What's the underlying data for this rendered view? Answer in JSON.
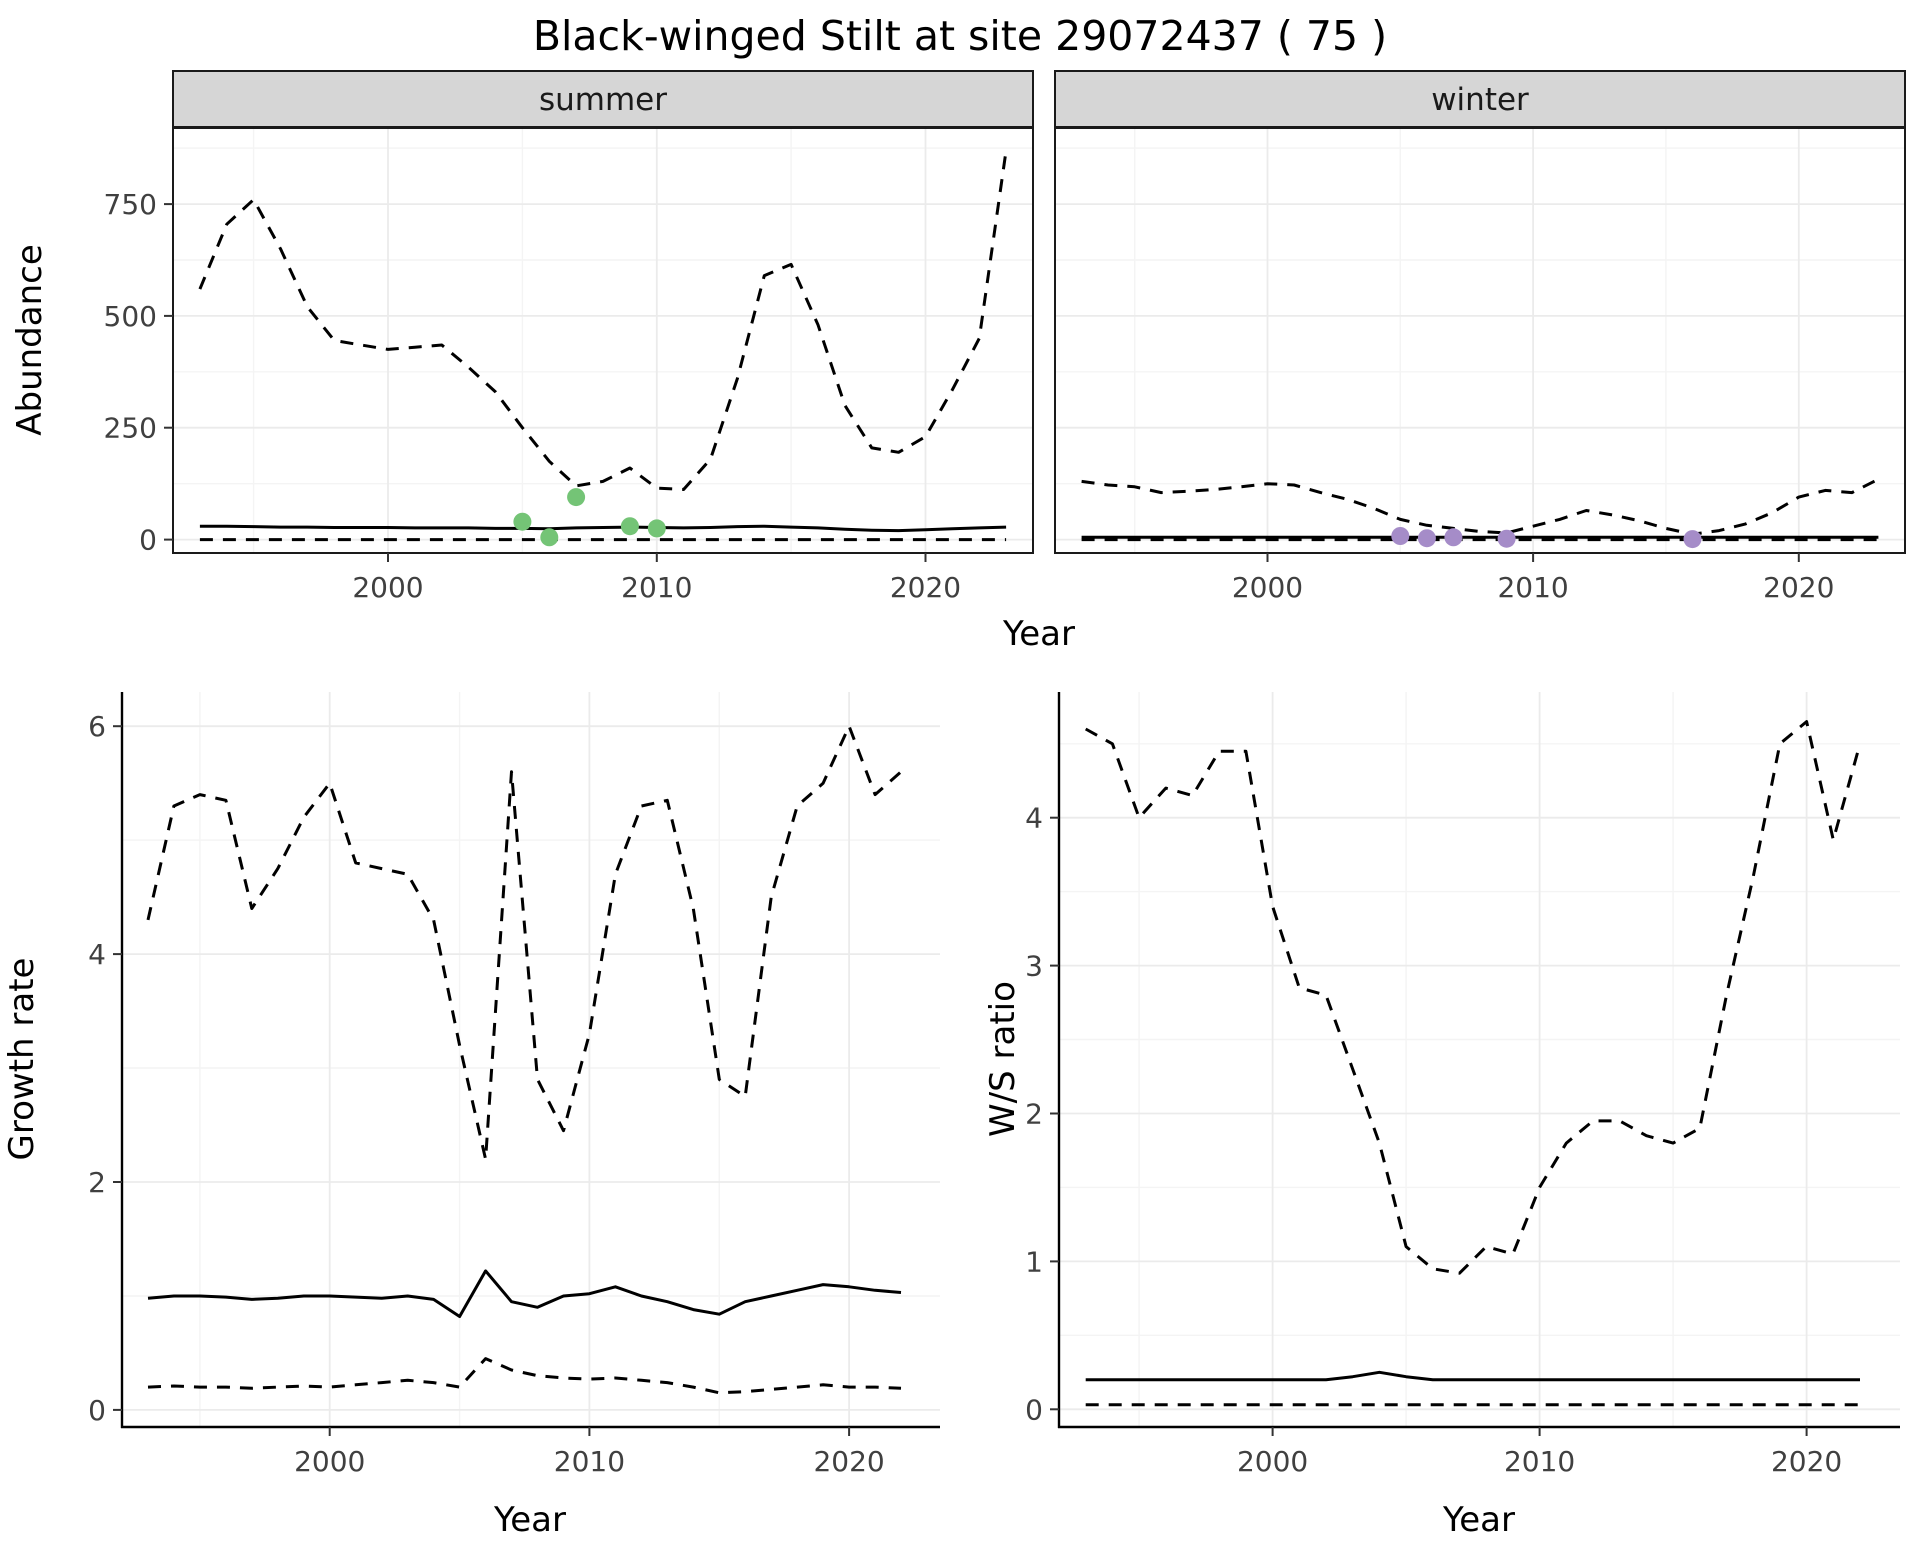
{
  "title": "Black-winged Stilt at site 29072437 ( 75 )",
  "axis_labels": {
    "abundance": "Abundance",
    "year": "Year",
    "growth_rate": "Growth rate",
    "ws_ratio": "W/S ratio"
  },
  "facet_labels": {
    "summer": "summer",
    "winter": "winter"
  },
  "colors": {
    "summer_points": "#74c476",
    "winter_points": "#a58cc8",
    "line": "#000000",
    "strip_bg": "#d6d6d6",
    "grid_major": "#ebebeb",
    "grid_minor": "#f4f4f4"
  },
  "chart_data": [
    {
      "id": "abundance-summer",
      "type": "line",
      "strip": "summer",
      "x_label": "Year",
      "y_label": "Abundance",
      "xlim": [
        1992,
        2024
      ],
      "ylim": [
        -30,
        920
      ],
      "xticks": [
        2000,
        2010,
        2020
      ],
      "yticks": [
        0,
        250,
        500,
        750
      ],
      "border": "full",
      "show_y_tick_labels": true,
      "x": [
        1993,
        1994,
        1995,
        1996,
        1997,
        1998,
        1999,
        2000,
        2001,
        2002,
        2003,
        2004,
        2005,
        2006,
        2007,
        2008,
        2009,
        2010,
        2011,
        2012,
        2013,
        2014,
        2015,
        2016,
        2017,
        2018,
        2019,
        2020,
        2021,
        2022,
        2023
      ],
      "series": [
        {
          "name": "upper_ci",
          "style": "dashed",
          "y": [
            560,
            705,
            760,
            650,
            520,
            445,
            435,
            425,
            430,
            435,
            385,
            330,
            250,
            175,
            120,
            130,
            160,
            115,
            112,
            180,
            360,
            590,
            615,
            480,
            300,
            205,
            195,
            230,
            335,
            450,
            870
          ]
        },
        {
          "name": "median",
          "style": "solid",
          "y": [
            30,
            30,
            29,
            28,
            28,
            27,
            27,
            27,
            26,
            26,
            26,
            25,
            25,
            24,
            26,
            27,
            28,
            27,
            26,
            27,
            29,
            30,
            28,
            26,
            23,
            21,
            20,
            22,
            24,
            26,
            28
          ]
        },
        {
          "name": "lower_ci",
          "style": "dashed",
          "y": [
            0,
            0,
            0,
            0,
            0,
            0,
            0,
            0,
            0,
            0,
            0,
            0,
            0,
            0,
            0,
            0,
            0,
            0,
            0,
            0,
            0,
            0,
            0,
            0,
            0,
            0,
            0,
            0,
            0,
            0,
            0
          ]
        }
      ],
      "observed_points": {
        "color": "#74c476",
        "x": [
          2005,
          2006,
          2007,
          2009,
          2010
        ],
        "y": [
          40,
          5,
          95,
          30,
          25
        ]
      }
    },
    {
      "id": "abundance-winter",
      "type": "line",
      "strip": "winter",
      "x_label": "Year",
      "y_label": "Abundance",
      "xlim": [
        1992,
        2024
      ],
      "ylim": [
        -30,
        920
      ],
      "xticks": [
        2000,
        2010,
        2020
      ],
      "yticks": [
        0,
        250,
        500,
        750
      ],
      "border": "full",
      "show_y_tick_labels": false,
      "x": [
        1993,
        1994,
        1995,
        1996,
        1997,
        1998,
        1999,
        2000,
        2001,
        2002,
        2003,
        2004,
        2005,
        2006,
        2007,
        2008,
        2009,
        2010,
        2011,
        2012,
        2013,
        2014,
        2015,
        2016,
        2017,
        2018,
        2019,
        2020,
        2021,
        2022,
        2023
      ],
      "series": [
        {
          "name": "upper_ci",
          "style": "dashed",
          "y": [
            130,
            122,
            118,
            105,
            108,
            112,
            118,
            125,
            122,
            105,
            90,
            70,
            45,
            32,
            25,
            18,
            15,
            30,
            45,
            65,
            55,
            42,
            25,
            12,
            20,
            35,
            60,
            95,
            110,
            105,
            135
          ]
        },
        {
          "name": "median",
          "style": "solid",
          "y": [
            5,
            5,
            5,
            5,
            5,
            5,
            5,
            5,
            5,
            5,
            5,
            5,
            5,
            5,
            5,
            5,
            5,
            5,
            5,
            5,
            5,
            5,
            5,
            5,
            5,
            5,
            5,
            5,
            5,
            5,
            5
          ]
        },
        {
          "name": "lower_ci",
          "style": "dashed",
          "y": [
            0,
            0,
            0,
            0,
            0,
            0,
            0,
            0,
            0,
            0,
            0,
            0,
            0,
            0,
            0,
            0,
            0,
            0,
            0,
            0,
            0,
            0,
            0,
            0,
            0,
            0,
            0,
            0,
            0,
            0,
            0
          ]
        }
      ],
      "observed_points": {
        "color": "#a58cc8",
        "x": [
          2005,
          2006,
          2007,
          2009,
          2016
        ],
        "y": [
          8,
          3,
          5,
          2,
          1
        ]
      }
    },
    {
      "id": "growth-rate",
      "type": "line",
      "strip": "",
      "x_label": "Year",
      "y_label": "Growth rate",
      "xlim": [
        1992,
        2023.5
      ],
      "ylim": [
        -0.15,
        6.3
      ],
      "xticks": [
        2000,
        2010,
        2020
      ],
      "yticks": [
        0,
        2,
        4,
        6
      ],
      "border": "axes",
      "show_y_tick_labels": true,
      "x": [
        1993,
        1994,
        1995,
        1996,
        1997,
        1998,
        1999,
        2000,
        2001,
        2002,
        2003,
        2004,
        2005,
        2006,
        2007,
        2008,
        2009,
        2010,
        2011,
        2012,
        2013,
        2014,
        2015,
        2016,
        2017,
        2018,
        2019,
        2020,
        2021,
        2022
      ],
      "series": [
        {
          "name": "upper_ci",
          "style": "dashed",
          "y": [
            4.3,
            5.3,
            5.4,
            5.35,
            4.4,
            4.75,
            5.2,
            5.5,
            4.8,
            4.75,
            4.7,
            4.3,
            3.2,
            2.2,
            5.6,
            2.9,
            2.45,
            3.3,
            4.7,
            5.3,
            5.35,
            4.4,
            2.9,
            2.75,
            4.5,
            5.3,
            5.5,
            6.0,
            5.4,
            5.6
          ]
        },
        {
          "name": "median",
          "style": "solid",
          "y": [
            0.98,
            1.0,
            1.0,
            0.99,
            0.97,
            0.98,
            1.0,
            1.0,
            0.99,
            0.98,
            1.0,
            0.97,
            0.82,
            1.22,
            0.95,
            0.9,
            1.0,
            1.02,
            1.08,
            1.0,
            0.95,
            0.88,
            0.84,
            0.95,
            1.0,
            1.05,
            1.1,
            1.08,
            1.05,
            1.03
          ]
        },
        {
          "name": "lower_ci",
          "style": "dashed",
          "y": [
            0.2,
            0.21,
            0.2,
            0.2,
            0.19,
            0.2,
            0.21,
            0.2,
            0.22,
            0.24,
            0.26,
            0.24,
            0.2,
            0.45,
            0.35,
            0.3,
            0.28,
            0.27,
            0.28,
            0.26,
            0.24,
            0.2,
            0.15,
            0.16,
            0.18,
            0.2,
            0.22,
            0.2,
            0.2,
            0.19
          ]
        }
      ]
    },
    {
      "id": "ws-ratio",
      "type": "line",
      "strip": "",
      "x_label": "Year",
      "y_label": "W/S ratio",
      "xlim": [
        1992,
        2023.5
      ],
      "ylim": [
        -0.12,
        4.85
      ],
      "xticks": [
        2000,
        2010,
        2020
      ],
      "yticks": [
        0,
        1,
        2,
        3,
        4
      ],
      "border": "axes",
      "show_y_tick_labels": true,
      "x": [
        1993,
        1994,
        1995,
        1996,
        1997,
        1998,
        1999,
        2000,
        2001,
        2002,
        2003,
        2004,
        2005,
        2006,
        2007,
        2008,
        2009,
        2010,
        2011,
        2012,
        2013,
        2014,
        2015,
        2016,
        2017,
        2018,
        2019,
        2020,
        2021,
        2022
      ],
      "series": [
        {
          "name": "upper_ci",
          "style": "dashed",
          "y": [
            4.6,
            4.5,
            4.0,
            4.2,
            4.15,
            4.45,
            4.45,
            3.4,
            2.85,
            2.8,
            2.3,
            1.8,
            1.1,
            0.95,
            0.92,
            1.1,
            1.05,
            1.5,
            1.8,
            1.95,
            1.95,
            1.85,
            1.8,
            1.9,
            2.8,
            3.6,
            4.5,
            4.65,
            3.85,
            4.5
          ]
        },
        {
          "name": "median",
          "style": "solid",
          "y": [
            0.2,
            0.2,
            0.2,
            0.2,
            0.2,
            0.2,
            0.2,
            0.2,
            0.2,
            0.2,
            0.22,
            0.25,
            0.22,
            0.2,
            0.2,
            0.2,
            0.2,
            0.2,
            0.2,
            0.2,
            0.2,
            0.2,
            0.2,
            0.2,
            0.2,
            0.2,
            0.2,
            0.2,
            0.2,
            0.2
          ]
        },
        {
          "name": "lower_ci",
          "style": "dashed",
          "y": [
            0.03,
            0.03,
            0.03,
            0.03,
            0.03,
            0.03,
            0.03,
            0.03,
            0.03,
            0.03,
            0.03,
            0.03,
            0.03,
            0.03,
            0.03,
            0.03,
            0.03,
            0.03,
            0.03,
            0.03,
            0.03,
            0.03,
            0.03,
            0.03,
            0.03,
            0.03,
            0.03,
            0.03,
            0.03,
            0.03
          ]
        }
      ]
    }
  ]
}
